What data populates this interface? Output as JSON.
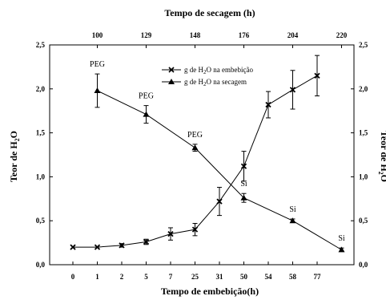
{
  "chart_data": {
    "type": "line",
    "title": "",
    "xlabel": "Tempo de embebição(h)",
    "x2label": "Tempo de secagem (h)",
    "ylabel_left": "Teor de H2O",
    "ylabel_right": "Teor de H2O",
    "ylim": [
      0,
      2.5
    ],
    "yticks": [
      "0,0",
      "0,5",
      "1,0",
      "1,5",
      "2,0",
      "2,5"
    ],
    "bottom_ticks": [
      "0",
      "1",
      "2",
      "5",
      "7",
      "25",
      "31",
      "50",
      "54",
      "58",
      "77"
    ],
    "top_ticks": [
      "100",
      "129",
      "148",
      "176",
      "204",
      "220"
    ],
    "top_tick_bottom_index": [
      1,
      3,
      5,
      7,
      9,
      11
    ],
    "legend_position": "top-center",
    "series": [
      {
        "name": "g de H2O na embebição",
        "marker": "x",
        "x_bottom": [
          "0",
          "1",
          "2",
          "5",
          "7",
          "25",
          "31",
          "50",
          "54",
          "58",
          "77"
        ],
        "values": [
          0.2,
          0.2,
          0.22,
          0.26,
          0.35,
          0.4,
          0.72,
          1.12,
          1.82,
          1.99,
          2.15
        ],
        "errors": [
          0.0,
          0.0,
          0.02,
          0.03,
          0.07,
          0.07,
          0.16,
          0.17,
          0.15,
          0.22,
          0.23
        ]
      },
      {
        "name": "g de H2O na secagem",
        "marker": "triangle",
        "x_top": [
          "100",
          "129",
          "148",
          "176",
          "204",
          "220"
        ],
        "values": [
          1.98,
          1.71,
          1.33,
          0.76,
          0.5,
          0.17
        ],
        "errors": [
          0.19,
          0.1,
          0.04,
          0.05,
          0.02,
          0.02
        ]
      }
    ],
    "annotations": [
      {
        "text": "PEG",
        "series_index": 1,
        "point_index": 0
      },
      {
        "text": "PEG",
        "series_index": 1,
        "point_index": 1
      },
      {
        "text": "PEG",
        "series_index": 1,
        "point_index": 2
      },
      {
        "text": "Si",
        "series_index": 1,
        "point_index": 3
      },
      {
        "text": "Si",
        "series_index": 1,
        "point_index": 4
      },
      {
        "text": "Si",
        "series_index": 1,
        "point_index": 5
      }
    ]
  }
}
